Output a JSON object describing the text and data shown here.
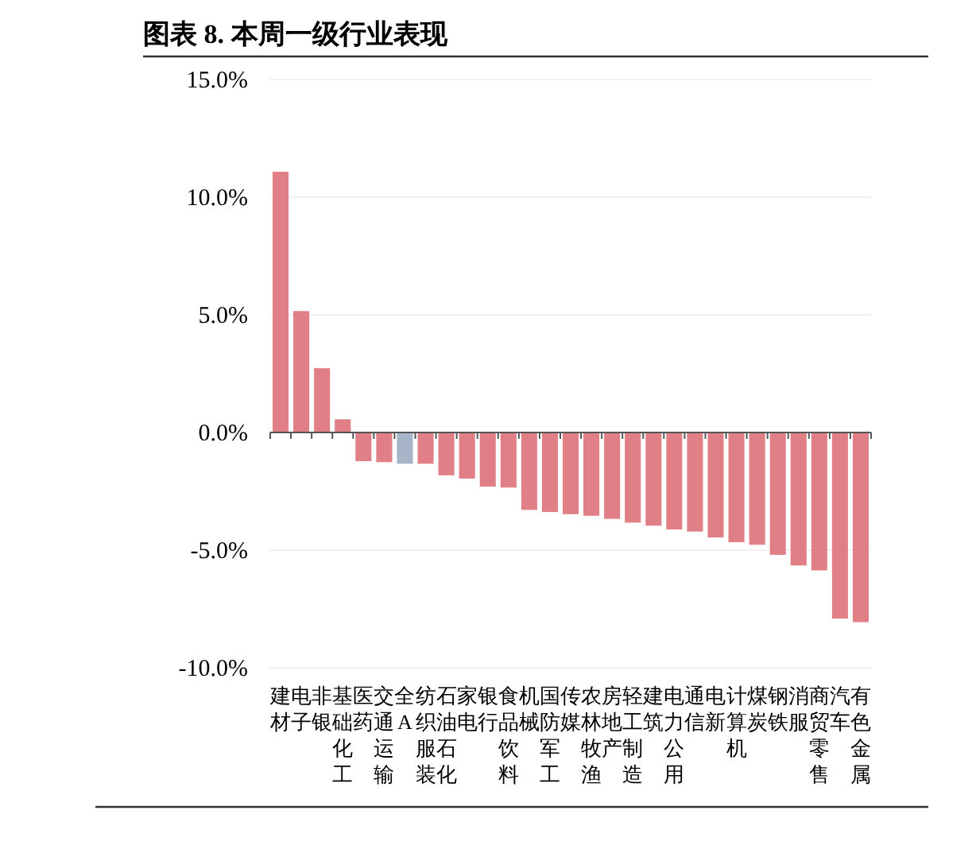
{
  "chart_data": {
    "type": "bar",
    "title": "图表 8. 本周一级行业表现",
    "categories": [
      "建材",
      "电子",
      "非银",
      "基础化工",
      "医药",
      "交通运输",
      "全A",
      "纺织服装",
      "石油石化",
      "家电",
      "银行",
      "食品饮料",
      "机械",
      "国防军工",
      "传媒",
      "农林牧渔",
      "房地产",
      "轻工制造",
      "建筑",
      "电力公用",
      "通信",
      "电新",
      "计算机",
      "煤炭",
      "钢铁",
      "消服",
      "商贸零售",
      "汽车",
      "有色金属"
    ],
    "values": [
      11.08,
      5.16,
      2.73,
      0.56,
      -1.22,
      -1.26,
      -1.33,
      -1.33,
      -1.82,
      -1.96,
      -2.3,
      -2.34,
      -3.29,
      -3.38,
      -3.47,
      -3.54,
      -3.67,
      -3.83,
      -3.96,
      -4.12,
      -4.21,
      -4.46,
      -4.66,
      -4.77,
      -5.2,
      -5.65,
      -5.86,
      -7.91,
      -8.06
    ],
    "colors": [
      "#e07f85",
      "#e07f85",
      "#e07f85",
      "#e07f85",
      "#e07f85",
      "#e07f85",
      "#a8b5c8",
      "#e07f85",
      "#e07f85",
      "#e07f85",
      "#e07f85",
      "#e07f85",
      "#e07f85",
      "#e07f85",
      "#e07f85",
      "#e07f85",
      "#e07f85",
      "#e07f85",
      "#e07f85",
      "#e07f85",
      "#e07f85",
      "#e07f85",
      "#e07f85",
      "#e07f85",
      "#e07f85",
      "#e07f85",
      "#e07f85",
      "#e07f85",
      "#e07f85"
    ],
    "ylim": [
      -10,
      15
    ],
    "yticks": [
      {
        "value": -10,
        "label": "-10.0%"
      },
      {
        "value": -5,
        "label": "-5.0%"
      },
      {
        "value": 0,
        "label": "0.0%"
      },
      {
        "value": 5,
        "label": "5.0%"
      },
      {
        "value": 10,
        "label": "10.0%"
      },
      {
        "value": 15,
        "label": "15.0%"
      }
    ],
    "grid": "y"
  }
}
